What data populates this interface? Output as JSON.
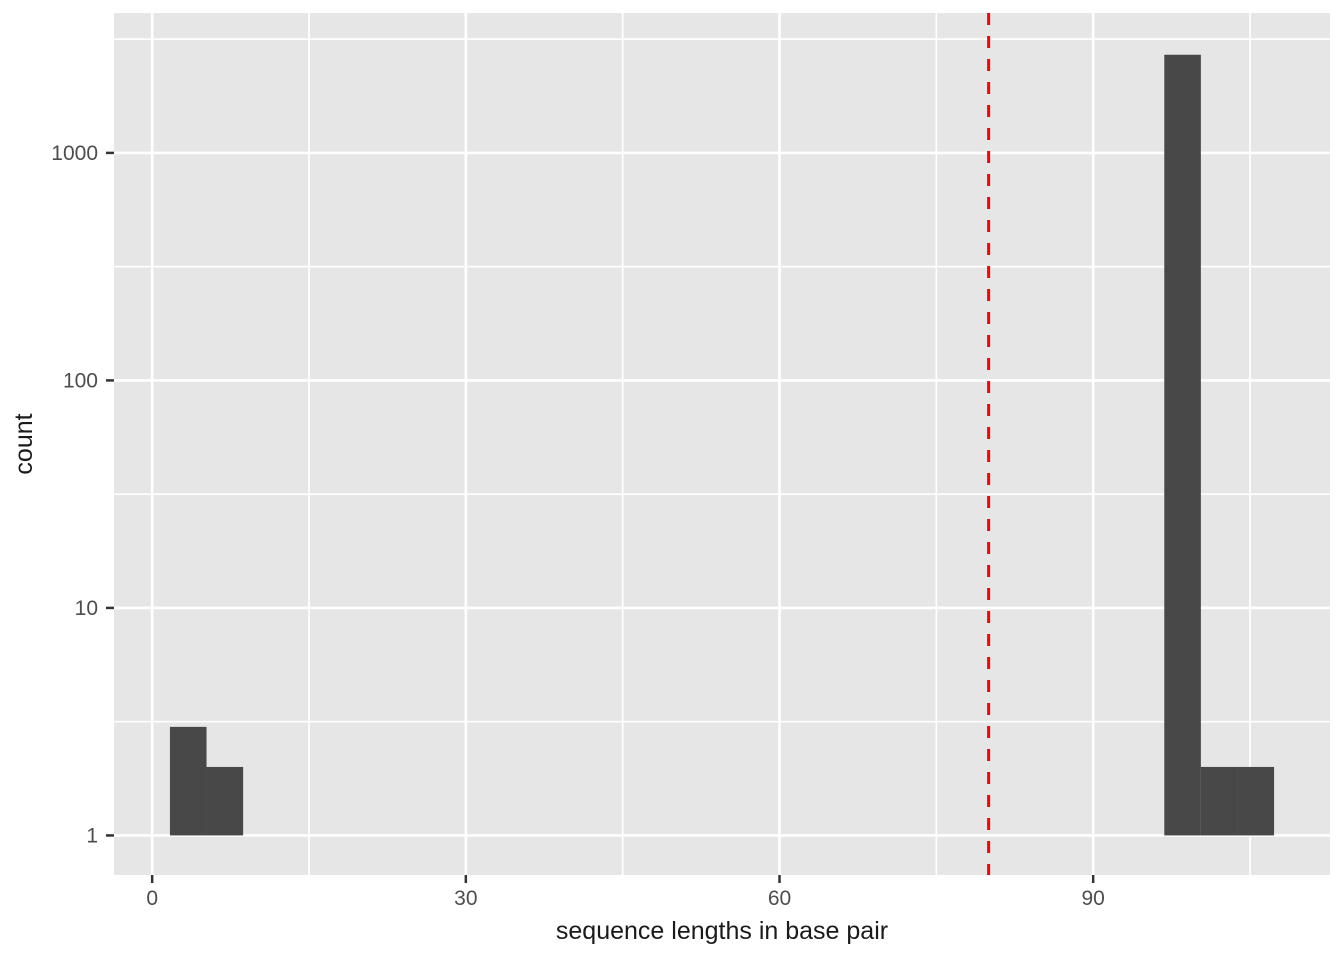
{
  "palette": {
    "background": "#FFFFFF",
    "panel": "#E6E6E6",
    "grid": "#FFFFFF",
    "bar": "#484848",
    "tick_mark": "#333333",
    "tick_label": "#4D4D4D",
    "axis_title": "#1A1A1A"
  },
  "chart_data": {
    "type": "bar",
    "subtype": "histogram",
    "title": "",
    "xlabel": "sequence lengths in base pair",
    "ylabel": "count",
    "y_scale": "log10",
    "grid": true,
    "legend_position": "none",
    "x_ticks": [
      0,
      30,
      60,
      90
    ],
    "y_ticks": [
      1,
      10,
      100,
      1000
    ],
    "x_minor_breaks": [
      15,
      45,
      75,
      105
    ],
    "y_minor_breaks": [
      3.162,
      31.62,
      316.2,
      3162
    ],
    "xlim": [
      -3.65,
      112.65
    ],
    "ylim": [
      0.67,
      4120
    ],
    "baseline": 1,
    "bins": [
      {
        "x0": 1.7,
        "x1": 5.2,
        "count": 3
      },
      {
        "x0": 5.2,
        "x1": 8.7,
        "count": 2
      },
      {
        "x0": 96.8,
        "x1": 100.3,
        "count": 2700
      },
      {
        "x0": 100.3,
        "x1": 103.8,
        "count": 2
      },
      {
        "x0": 103.8,
        "x1": 107.3,
        "count": 2
      }
    ],
    "vline": {
      "x": 80,
      "color": "#FF0000",
      "style": "dashed",
      "width": 3,
      "dash": [
        12,
        11
      ]
    }
  }
}
